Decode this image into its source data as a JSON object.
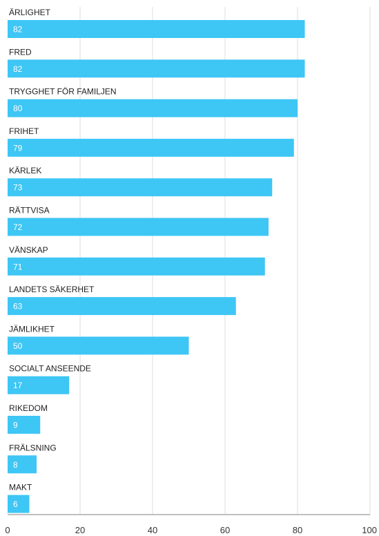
{
  "chart_data": {
    "type": "bar",
    "orientation": "horizontal",
    "categories": [
      "ÄRLIGHET",
      "FRED",
      "TRYGGHET FÖR FAMILJEN",
      "FRIHET",
      "KÄRLEK",
      "RÄTTVISA",
      "VÄNSKAP",
      "LANDETS SÄKERHET",
      "JÄMLIKHET",
      "SOCIALT ANSEENDE",
      "RIKEDOM",
      "FRÄLSNING",
      "MAKT"
    ],
    "values": [
      82,
      82,
      80,
      79,
      73,
      72,
      71,
      63,
      50,
      17,
      9,
      8,
      6
    ],
    "value_labels": [
      "82",
      "82",
      "80",
      "79",
      "73",
      "72",
      "71",
      "63",
      "50",
      "17",
      "9",
      "8",
      "6"
    ],
    "xticks": [
      "0",
      "20",
      "40",
      "60",
      "80",
      "100"
    ],
    "xlim": [
      0,
      100
    ],
    "grid": true,
    "bar_color": "#3ec6f5"
  }
}
